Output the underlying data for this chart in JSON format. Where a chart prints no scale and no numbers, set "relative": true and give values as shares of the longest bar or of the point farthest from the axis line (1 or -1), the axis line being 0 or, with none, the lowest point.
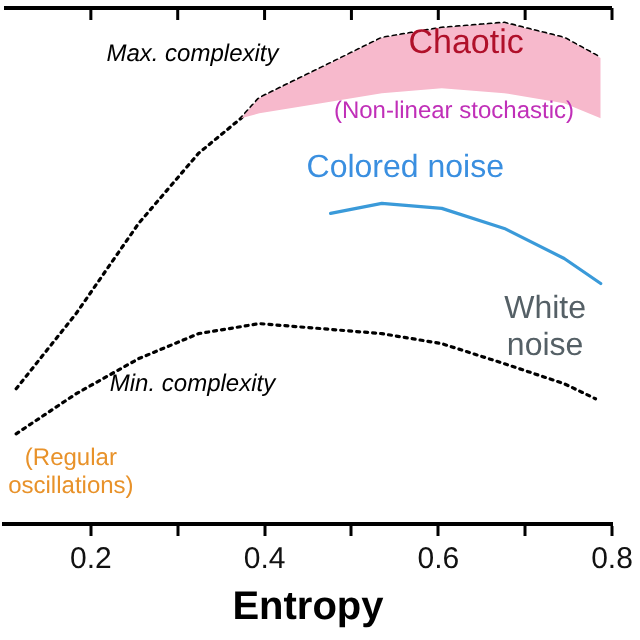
{
  "chart_data": {
    "type": "line",
    "xlabel": "Entropy",
    "relative": true,
    "xlim": [
      0.1,
      0.8
    ],
    "xticks": [
      0.2,
      {
        "value": 0.3,
        "label": null
      },
      0.4,
      {
        "value": 0.5,
        "label": null
      },
      0.6,
      {
        "value": 0.7,
        "label": null
      },
      0.8
    ],
    "grid": false,
    "legend": false,
    "marker": "none",
    "series": [
      {
        "color": "#000000",
        "line_style": "dotted",
        "x": [
          0.114,
          0.183,
          0.255,
          0.324,
          0.373,
          0.394,
          0.465,
          0.535,
          0.604,
          0.676,
          0.745,
          0.787
        ],
        "values": [
          0.27,
          0.42,
          0.6,
          0.74,
          0.81,
          0.85,
          0.91,
          0.97,
          0.99,
          1.0,
          0.97,
          0.93
        ],
        "lower": [
          null,
          null,
          null,
          null,
          0.81,
          0.82,
          0.84,
          0.86,
          0.87,
          0.86,
          0.84,
          0.81
        ],
        "upper": [
          null,
          null,
          null,
          null,
          0.81,
          0.85,
          0.91,
          0.97,
          0.99,
          1.0,
          0.97,
          0.93
        ]
      },
      {
        "color": "#000000",
        "line_style": "dotted",
        "x": [
          0.114,
          0.183,
          0.255,
          0.324,
          0.394,
          0.465,
          0.535,
          0.604,
          0.676,
          0.745,
          0.781
        ],
        "values": [
          0.18,
          0.26,
          0.33,
          0.38,
          0.4,
          0.39,
          0.38,
          0.36,
          0.32,
          0.28,
          0.25
        ]
      },
      {
        "color": "#3a9ad9",
        "line_style": "solid",
        "x": [
          0.476,
          0.535,
          0.604,
          0.676,
          0.745,
          0.787
        ],
        "values": [
          0.62,
          0.64,
          0.63,
          0.59,
          0.53,
          0.48
        ]
      }
    ],
    "annotations": [
      "Max. complexity",
      "Min. complexity",
      "Chaotic",
      "(Non-linear stochastic)",
      "Colored noise",
      "White\nnoise",
      "(Regular\noscillations)"
    ]
  }
}
